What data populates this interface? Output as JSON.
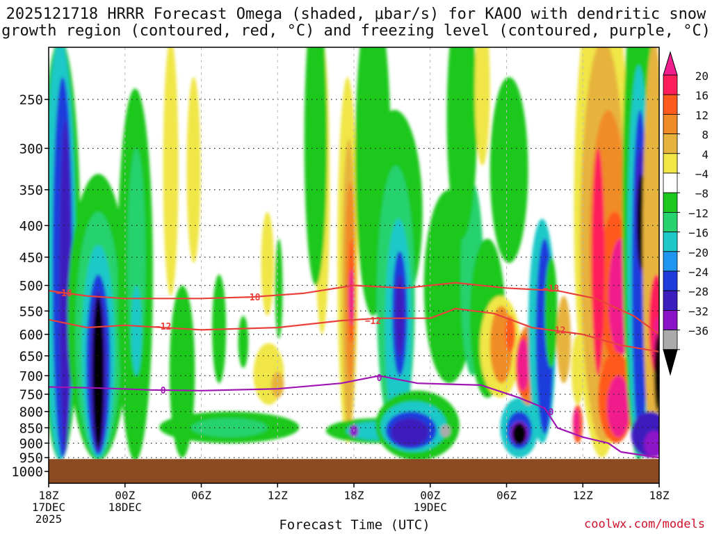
{
  "chart_data": {
    "type": "heatmap",
    "title_line1": "2025121718 HRRR Forecast Omega (shaded, μbar/s) for KAOO with dendritic snow",
    "title_line2": "growth region (contoured, red, °C) and freezing level (contoured, purple, °C)",
    "xlabel": "Forecast Time (UTC)",
    "credit": "coolwx.com/models",
    "x_range_hours": [
      0,
      48
    ],
    "x_ticks": [
      {
        "h": 0,
        "l1": "18Z",
        "l2": "17DEC",
        "l3": "2025"
      },
      {
        "h": 6,
        "l1": "00Z",
        "l2": "18DEC",
        "l3": ""
      },
      {
        "h": 12,
        "l1": "06Z",
        "l2": "",
        "l3": ""
      },
      {
        "h": 18,
        "l1": "12Z",
        "l2": "",
        "l3": ""
      },
      {
        "h": 24,
        "l1": "18Z",
        "l2": "",
        "l3": ""
      },
      {
        "h": 30,
        "l1": "00Z",
        "l2": "19DEC",
        "l3": ""
      },
      {
        "h": 36,
        "l1": "06Z",
        "l2": "",
        "l3": ""
      },
      {
        "h": 42,
        "l1": "12Z",
        "l2": "",
        "l3": ""
      },
      {
        "h": 48,
        "l1": "18Z",
        "l2": "",
        "l3": ""
      }
    ],
    "y_unit": "hPa",
    "y_range_hpa": [
      1000,
      200
    ],
    "y_ticks": [
      250,
      300,
      350,
      400,
      450,
      500,
      550,
      600,
      650,
      700,
      750,
      800,
      850,
      900,
      950,
      1000
    ],
    "surface_pressure_hpa": 955,
    "colorbar": {
      "labels": [
        "20",
        "16",
        "12",
        "8",
        "4",
        "−4",
        "−8",
        "−12",
        "−16",
        "−20",
        "−24",
        "−28",
        "−32",
        "−36"
      ],
      "colors": [
        "#ff1e5a",
        "#ff5a1e",
        "#f08c28",
        "#e6b43c",
        "#f0e646",
        "#ffffff",
        "#1ec81e",
        "#28d26e",
        "#1ec8c8",
        "#1e96f0",
        "#1e3cdc",
        "#3c1ebe",
        "#8c14c8",
        "#aaaaaa"
      ],
      "top_cap_color": "#f01e8c",
      "bottom_cap_color": "#000000"
    },
    "contours": [
      {
        "name": "-18 C",
        "label": "−18",
        "color": "#e8413c",
        "points": [
          [
            0,
            510
          ],
          [
            3,
            520
          ],
          [
            6,
            525
          ],
          [
            12,
            525
          ],
          [
            16,
            522
          ],
          [
            20,
            515
          ],
          [
            24,
            500
          ],
          [
            28,
            505
          ],
          [
            32,
            495
          ],
          [
            36,
            505
          ],
          [
            40,
            510
          ],
          [
            43,
            525
          ],
          [
            46,
            560
          ],
          [
            48,
            600
          ]
        ]
      },
      {
        "name": "-12 C",
        "label": "−12",
        "color": "#e8413c",
        "points": [
          [
            0,
            568
          ],
          [
            3,
            585
          ],
          [
            6,
            580
          ],
          [
            12,
            590
          ],
          [
            18,
            585
          ],
          [
            23,
            570
          ],
          [
            26,
            565
          ],
          [
            30,
            565
          ],
          [
            32,
            545
          ],
          [
            35,
            555
          ],
          [
            38,
            585
          ],
          [
            42,
            600
          ],
          [
            45,
            625
          ],
          [
            48,
            640
          ]
        ]
      },
      {
        "name": "0 C",
        "label": "0",
        "color": "#a014b4",
        "points": [
          [
            0,
            730
          ],
          [
            4,
            733
          ],
          [
            8,
            738
          ],
          [
            12,
            740
          ],
          [
            18,
            735
          ],
          [
            23,
            720
          ],
          [
            26,
            700
          ],
          [
            29,
            720
          ],
          [
            34,
            725
          ],
          [
            37,
            760
          ],
          [
            39,
            790
          ],
          [
            40,
            850
          ],
          [
            42,
            880
          ],
          [
            44,
            900
          ],
          [
            45,
            930
          ],
          [
            48,
            950
          ]
        ]
      }
    ],
    "contour_labels": [
      {
        "text": "−18",
        "h": 1.2,
        "p": 514
      },
      {
        "text": "−18",
        "h": 16,
        "p": 522
      },
      {
        "text": "−18",
        "h": 39.5,
        "p": 505
      },
      {
        "text": "−12",
        "h": 9,
        "p": 582
      },
      {
        "text": "−12",
        "h": 25.5,
        "p": 570
      },
      {
        "text": "−12",
        "h": 40,
        "p": 590
      },
      {
        "text": "0",
        "h": 9,
        "p": 738
      },
      {
        "text": "0",
        "h": 26,
        "p": 705
      },
      {
        "text": "0",
        "h": 39.5,
        "p": 800
      }
    ]
  }
}
